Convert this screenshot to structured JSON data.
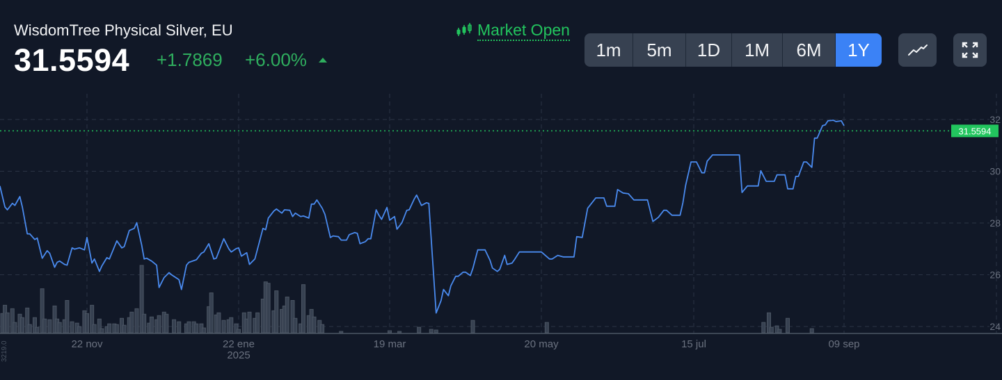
{
  "header": {
    "title": "WisdomTree Physical Silver, EU",
    "price": "31.5594",
    "change": "+1.7869",
    "change_pct": "+6.00%",
    "direction_icon": "triangle-up-icon",
    "market_status": "Market Open",
    "market_status_icon": "candlestick-icon"
  },
  "timeframes": [
    {
      "label": "1m",
      "active": false
    },
    {
      "label": "5m",
      "active": false
    },
    {
      "label": "1D",
      "active": false
    },
    {
      "label": "1M",
      "active": false
    },
    {
      "label": "6M",
      "active": false
    },
    {
      "label": "1Y",
      "active": true
    }
  ],
  "toolbar": {
    "chart_type_icon": "line-chart-icon",
    "fullscreen_icon": "expand-icon"
  },
  "colors": {
    "background": "#111827",
    "line": "#4a8bf0",
    "up": "#22c55e",
    "active": "#3b82f6",
    "button": "#374151",
    "volume": "#4b5563"
  },
  "chart_data": {
    "type": "line",
    "title": "",
    "xlabel": "",
    "ylabel": "",
    "ylim": [
      24,
      32
    ],
    "y_ticks": [
      "32",
      "30",
      "28",
      "26",
      "24"
    ],
    "x_ticks": [
      {
        "date": "2024-11-22",
        "label": "22 nov",
        "sub": ""
      },
      {
        "date": "2025-01-22",
        "label": "22 ene",
        "sub": "2025"
      },
      {
        "date": "2025-03-19",
        "label": "19 mar",
        "sub": ""
      },
      {
        "date": "2025-05-20",
        "label": "20 may",
        "sub": ""
      },
      {
        "date": "2025-07-15",
        "label": "15 jul",
        "sub": ""
      },
      {
        "date": "2025-09-09",
        "label": "09 sep",
        "sub": ""
      }
    ],
    "grid": true,
    "last_price_label": "31.5594",
    "last_price": 31.5594,
    "volume_axis_label": "3219.0",
    "volume_max": 3219,
    "series": [
      [
        "2024-10-18",
        29.43
      ],
      [
        "2024-10-20",
        28.62
      ],
      [
        "2024-10-21",
        28.51
      ],
      [
        "2024-10-23",
        28.76
      ],
      [
        "2024-10-24",
        28.68
      ],
      [
        "2024-10-26",
        29.02
      ],
      [
        "2024-10-27",
        28.62
      ],
      [
        "2024-10-29",
        27.58
      ],
      [
        "2024-10-30",
        27.58
      ],
      [
        "2024-11-01",
        27.36
      ],
      [
        "2024-11-02",
        27.42
      ],
      [
        "2024-11-04",
        26.64
      ],
      [
        "2024-11-06",
        26.93
      ],
      [
        "2024-11-07",
        26.83
      ],
      [
        "2024-11-09",
        26.29
      ],
      [
        "2024-11-10",
        26.48
      ],
      [
        "2024-11-11",
        26.53
      ],
      [
        "2024-11-13",
        26.4
      ],
      [
        "2024-11-14",
        26.37
      ],
      [
        "2024-11-16",
        27.04
      ],
      [
        "2024-11-17",
        26.99
      ],
      [
        "2024-11-19",
        27.04
      ],
      [
        "2024-11-21",
        26.96
      ],
      [
        "2024-11-22",
        27.44
      ],
      [
        "2024-11-24",
        26.45
      ],
      [
        "2024-11-25",
        26.61
      ],
      [
        "2024-11-27",
        26.13
      ],
      [
        "2024-11-28",
        26.34
      ],
      [
        "2024-11-30",
        26.66
      ],
      [
        "2024-12-01",
        26.61
      ],
      [
        "2024-12-04",
        27.31
      ],
      [
        "2024-12-06",
        27.04
      ],
      [
        "2024-12-07",
        27.09
      ],
      [
        "2024-12-09",
        27.71
      ],
      [
        "2024-12-11",
        27.79
      ],
      [
        "2024-12-12",
        28.01
      ],
      [
        "2024-12-14",
        27.15
      ],
      [
        "2024-12-15",
        26.61
      ],
      [
        "2024-12-16",
        26.64
      ],
      [
        "2024-12-18",
        26.53
      ],
      [
        "2024-12-20",
        26.37
      ],
      [
        "2024-12-21",
        25.51
      ],
      [
        "2024-12-23",
        25.89
      ],
      [
        "2024-12-25",
        26.08
      ],
      [
        "2024-12-26",
        26.0
      ],
      [
        "2024-12-29",
        25.81
      ],
      [
        "2024-12-30",
        25.43
      ],
      [
        "2025-01-01",
        26.37
      ],
      [
        "2025-01-02",
        26.48
      ],
      [
        "2025-01-05",
        26.58
      ],
      [
        "2025-01-07",
        26.83
      ],
      [
        "2025-01-08",
        26.88
      ],
      [
        "2025-01-10",
        27.2
      ],
      [
        "2025-01-12",
        26.61
      ],
      [
        "2025-01-13",
        26.64
      ],
      [
        "2025-01-16",
        27.39
      ],
      [
        "2025-01-18",
        27.01
      ],
      [
        "2025-01-19",
        26.88
      ],
      [
        "2025-01-21",
        27.01
      ],
      [
        "2025-01-22",
        27.04
      ],
      [
        "2025-01-23",
        26.72
      ],
      [
        "2025-01-25",
        26.85
      ],
      [
        "2025-01-26",
        26.4
      ],
      [
        "2025-01-28",
        26.61
      ],
      [
        "2025-01-31",
        27.79
      ],
      [
        "2025-02-01",
        27.74
      ],
      [
        "2025-02-02",
        28.19
      ],
      [
        "2025-02-04",
        28.46
      ],
      [
        "2025-02-05",
        28.54
      ],
      [
        "2025-02-07",
        28.38
      ],
      [
        "2025-02-08",
        28.51
      ],
      [
        "2025-02-10",
        28.49
      ],
      [
        "2025-02-11",
        28.25
      ],
      [
        "2025-02-12",
        28.38
      ],
      [
        "2025-02-14",
        28.25
      ],
      [
        "2025-02-15",
        28.27
      ],
      [
        "2025-02-17",
        28.19
      ],
      [
        "2025-02-18",
        28.73
      ],
      [
        "2025-02-19",
        28.73
      ],
      [
        "2025-02-20",
        28.89
      ],
      [
        "2025-02-22",
        28.57
      ],
      [
        "2025-02-23",
        28.33
      ],
      [
        "2025-02-25",
        27.44
      ],
      [
        "2025-02-26",
        27.5
      ],
      [
        "2025-02-28",
        27.47
      ],
      [
        "2025-03-01",
        27.34
      ],
      [
        "2025-03-03",
        27.34
      ],
      [
        "2025-03-04",
        27.55
      ],
      [
        "2025-03-06",
        27.63
      ],
      [
        "2025-03-07",
        27.6
      ],
      [
        "2025-03-08",
        27.2
      ],
      [
        "2025-03-10",
        27.28
      ],
      [
        "2025-03-11",
        27.39
      ],
      [
        "2025-03-12",
        27.39
      ],
      [
        "2025-03-14",
        28.51
      ],
      [
        "2025-03-15",
        28.3
      ],
      [
        "2025-03-16",
        28.14
      ],
      [
        "2025-03-18",
        28.6
      ],
      [
        "2025-03-19",
        28.11
      ],
      [
        "2025-03-21",
        28.25
      ],
      [
        "2025-03-22",
        27.76
      ],
      [
        "2025-03-24",
        28.01
      ],
      [
        "2025-03-26",
        28.49
      ],
      [
        "2025-03-27",
        28.51
      ],
      [
        "2025-03-29",
        28.92
      ],
      [
        "2025-03-30",
        29.08
      ],
      [
        "2025-04-01",
        28.68
      ],
      [
        "2025-04-03",
        28.78
      ],
      [
        "2025-04-04",
        28.76
      ],
      [
        "2025-04-07",
        24.52
      ],
      [
        "2025-04-09",
        25.0
      ],
      [
        "2025-04-10",
        25.43
      ],
      [
        "2025-04-12",
        25.19
      ],
      [
        "2025-04-13",
        25.57
      ],
      [
        "2025-04-15",
        25.94
      ],
      [
        "2025-04-16",
        25.94
      ],
      [
        "2025-04-18",
        26.1
      ],
      [
        "2025-04-19",
        26.1
      ],
      [
        "2025-04-21",
        25.97
      ],
      [
        "2025-04-22",
        26.24
      ],
      [
        "2025-04-24",
        26.96
      ],
      [
        "2025-04-27",
        26.96
      ],
      [
        "2025-04-29",
        26.56
      ],
      [
        "2025-04-30",
        26.26
      ],
      [
        "2025-05-02",
        26.13
      ],
      [
        "2025-05-03",
        26.21
      ],
      [
        "2025-05-05",
        26.75
      ],
      [
        "2025-05-06",
        26.4
      ],
      [
        "2025-05-08",
        26.45
      ],
      [
        "2025-05-09",
        26.58
      ],
      [
        "2025-05-11",
        26.88
      ],
      [
        "2025-05-20",
        26.88
      ],
      [
        "2025-05-23",
        26.61
      ],
      [
        "2025-05-24",
        26.61
      ],
      [
        "2025-05-26",
        26.75
      ],
      [
        "2025-05-28",
        26.69
      ],
      [
        "2025-06-01",
        26.69
      ],
      [
        "2025-06-02",
        27.47
      ],
      [
        "2025-06-04",
        27.44
      ],
      [
        "2025-06-06",
        28.57
      ],
      [
        "2025-06-09",
        28.97
      ],
      [
        "2025-06-12",
        28.97
      ],
      [
        "2025-06-13",
        28.65
      ],
      [
        "2025-06-16",
        28.65
      ],
      [
        "2025-06-17",
        29.29
      ],
      [
        "2025-06-19",
        29.16
      ],
      [
        "2025-06-21",
        29.13
      ],
      [
        "2025-06-23",
        28.89
      ],
      [
        "2025-06-28",
        28.89
      ],
      [
        "2025-06-30",
        28.06
      ],
      [
        "2025-07-02",
        28.22
      ],
      [
        "2025-07-04",
        28.49
      ],
      [
        "2025-07-05",
        28.49
      ],
      [
        "2025-07-07",
        28.3
      ],
      [
        "2025-07-10",
        28.3
      ],
      [
        "2025-07-11",
        28.78
      ],
      [
        "2025-07-12",
        29.45
      ],
      [
        "2025-07-14",
        30.36
      ],
      [
        "2025-07-16",
        30.36
      ],
      [
        "2025-07-18",
        29.94
      ],
      [
        "2025-07-19",
        29.94
      ],
      [
        "2025-07-20",
        30.39
      ],
      [
        "2025-07-22",
        30.63
      ],
      [
        "2025-08-01",
        30.63
      ],
      [
        "2025-08-02",
        29.18
      ],
      [
        "2025-08-04",
        29.43
      ],
      [
        "2025-08-08",
        29.43
      ],
      [
        "2025-08-09",
        30.02
      ],
      [
        "2025-08-11",
        29.61
      ],
      [
        "2025-08-14",
        29.61
      ],
      [
        "2025-08-15",
        29.86
      ],
      [
        "2025-08-18",
        29.86
      ],
      [
        "2025-08-19",
        29.32
      ],
      [
        "2025-08-21",
        29.32
      ],
      [
        "2025-08-22",
        29.8
      ],
      [
        "2025-08-23",
        29.8
      ],
      [
        "2025-08-25",
        30.36
      ],
      [
        "2025-08-26",
        30.36
      ],
      [
        "2025-08-28",
        30.15
      ],
      [
        "2025-08-29",
        31.28
      ],
      [
        "2025-08-30",
        31.28
      ],
      [
        "2025-09-01",
        31.76
      ],
      [
        "2025-09-02",
        31.79
      ],
      [
        "2025-09-03",
        31.95
      ],
      [
        "2025-09-05",
        31.97
      ],
      [
        "2025-09-06",
        31.92
      ],
      [
        "2025-09-08",
        31.95
      ],
      [
        "2025-09-09",
        31.76
      ]
    ],
    "volume": [
      [
        "2024-10-19",
        920
      ],
      [
        "2024-10-20",
        1314
      ],
      [
        "2024-10-21",
        953
      ],
      [
        "2024-10-23",
        1150
      ],
      [
        "2024-10-24",
        493
      ],
      [
        "2024-10-26",
        887
      ],
      [
        "2024-10-27",
        723
      ],
      [
        "2024-10-29",
        1183
      ],
      [
        "2024-10-30",
        394
      ],
      [
        "2024-11-01",
        723
      ],
      [
        "2024-11-02",
        263
      ],
      [
        "2024-11-04",
        2102
      ],
      [
        "2024-11-05",
        657
      ],
      [
        "2024-11-07",
        624
      ],
      [
        "2024-11-09",
        1281
      ],
      [
        "2024-11-10",
        657
      ],
      [
        "2024-11-11",
        493
      ],
      [
        "2024-11-13",
        624
      ],
      [
        "2024-11-14",
        1544
      ],
      [
        "2024-11-16",
        526
      ],
      [
        "2024-11-18",
        460
      ],
      [
        "2024-11-19",
        296
      ],
      [
        "2024-11-21",
        1051
      ],
      [
        "2024-11-22",
        920
      ],
      [
        "2024-11-24",
        1314
      ],
      [
        "2024-11-25",
        394
      ],
      [
        "2024-11-27",
        657
      ],
      [
        "2024-11-28",
        197
      ],
      [
        "2024-11-30",
        296
      ],
      [
        "2024-12-01",
        427
      ],
      [
        "2024-12-03",
        427
      ],
      [
        "2024-12-04",
        394
      ],
      [
        "2024-12-06",
        690
      ],
      [
        "2024-12-07",
        361
      ],
      [
        "2024-12-09",
        723
      ],
      [
        "2024-12-10",
        986
      ],
      [
        "2024-12-12",
        1150
      ],
      [
        "2024-12-14",
        3219
      ],
      [
        "2024-12-15",
        887
      ],
      [
        "2024-12-17",
        460
      ],
      [
        "2024-12-18",
        756
      ],
      [
        "2024-12-20",
        624
      ],
      [
        "2024-12-21",
        821
      ],
      [
        "2024-12-23",
        986
      ],
      [
        "2024-12-24",
        887
      ],
      [
        "2024-12-27",
        624
      ],
      [
        "2024-12-29",
        526
      ],
      [
        "2025-01-01",
        427
      ],
      [
        "2025-01-02",
        526
      ],
      [
        "2025-01-04",
        526
      ],
      [
        "2025-01-05",
        427
      ],
      [
        "2025-01-07",
        427
      ],
      [
        "2025-01-08",
        230
      ],
      [
        "2025-01-10",
        1248
      ],
      [
        "2025-01-11",
        1905
      ],
      [
        "2025-01-13",
        854
      ],
      [
        "2025-01-14",
        953
      ],
      [
        "2025-01-16",
        591
      ],
      [
        "2025-01-18",
        624
      ],
      [
        "2025-01-19",
        723
      ],
      [
        "2025-01-21",
        427
      ],
      [
        "2025-01-22",
        164
      ],
      [
        "2025-01-24",
        953
      ],
      [
        "2025-01-25",
        657
      ],
      [
        "2025-01-26",
        986
      ],
      [
        "2025-01-28",
        690
      ],
      [
        "2025-01-29",
        953
      ],
      [
        "2025-01-31",
        1610
      ],
      [
        "2025-02-01",
        2431
      ],
      [
        "2025-02-02",
        2365
      ],
      [
        "2025-02-04",
        1051
      ],
      [
        "2025-02-05",
        2004
      ],
      [
        "2025-02-07",
        1117
      ],
      [
        "2025-02-08",
        1281
      ],
      [
        "2025-02-09",
        1708
      ],
      [
        "2025-02-11",
        1544
      ],
      [
        "2025-02-12",
        690
      ],
      [
        "2025-02-14",
        427
      ],
      [
        "2025-02-15",
        2300
      ],
      [
        "2025-02-17",
        821
      ],
      [
        "2025-02-18",
        1117
      ],
      [
        "2025-02-19",
        756
      ],
      [
        "2025-02-21",
        591
      ],
      [
        "2025-02-22",
        394
      ],
      [
        "2025-03-01",
        66
      ],
      [
        "2025-03-19",
        99
      ],
      [
        "2025-03-23",
        66
      ],
      [
        "2025-03-31",
        263
      ],
      [
        "2025-04-05",
        164
      ],
      [
        "2025-04-07",
        131
      ],
      [
        "2025-04-22",
        591
      ],
      [
        "2025-05-22",
        493
      ],
      [
        "2025-08-10",
        493
      ],
      [
        "2025-08-12",
        953
      ],
      [
        "2025-08-13",
        263
      ],
      [
        "2025-08-15",
        329
      ],
      [
        "2025-08-16",
        164
      ],
      [
        "2025-08-19",
        690
      ],
      [
        "2025-08-28",
        197
      ]
    ]
  }
}
